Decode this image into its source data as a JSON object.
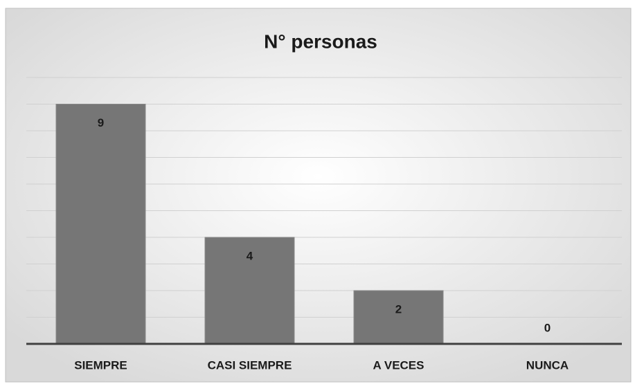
{
  "chart_data": {
    "type": "bar",
    "title": "N° personas",
    "categories": [
      "SIEMPRE",
      "CASI SIEMPRE",
      "A VECES",
      "NUNCA"
    ],
    "values": [
      9,
      4,
      2,
      0
    ],
    "color": "#767676",
    "ylim": [
      0,
      10
    ],
    "yticks": [
      0,
      1,
      2,
      3,
      4,
      5,
      6,
      7,
      8,
      9,
      10
    ],
    "grid": true
  }
}
